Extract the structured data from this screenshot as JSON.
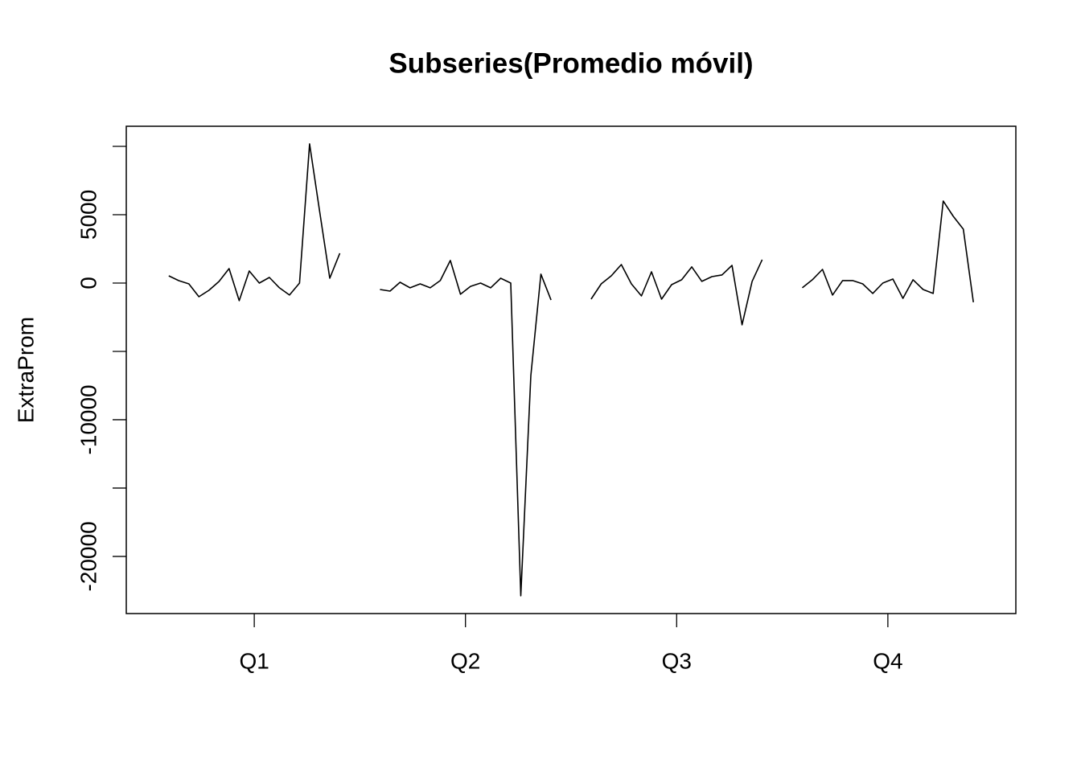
{
  "chart_data": {
    "type": "subseries",
    "title": "Subseries(Promedio móvil)",
    "y_label": "ExtraProm",
    "categories": [
      "Q1",
      "Q2",
      "Q3",
      "Q4"
    ],
    "subseries": [
      [
        530,
        176,
        -59,
        -1000,
        -530,
        118,
        1060,
        -1290,
        880,
        0,
        410,
        -350,
        -880,
        0,
        10180,
        5240,
        350,
        2180
      ],
      [
        -470,
        -590,
        60,
        -350,
        -60,
        -350,
        180,
        1650,
        -820,
        -240,
        0,
        -350,
        350,
        0,
        -22880,
        -6760,
        650,
        -1240
      ],
      [
        -1180,
        -60,
        530,
        1350,
        -60,
        -940,
        820,
        -1180,
        -120,
        240,
        1180,
        120,
        470,
        590,
        1290,
        -3060,
        120,
        1710
      ],
      [
        -350,
        240,
        1000,
        -880,
        180,
        180,
        -60,
        -760,
        0,
        290,
        -1120,
        240,
        -470,
        -760,
        6000,
        4880,
        3940,
        -1410
      ]
    ],
    "color": "#000000",
    "xlim": [
      0.394,
      4.606
    ],
    "ylim": [
      -24180,
      11470
    ],
    "yticks": [
      -20000,
      {
        "value": -15000,
        "label": null
      },
      -10000,
      {
        "value": -5000,
        "label": null
      },
      0,
      5000,
      {
        "value": 10000,
        "label": null
      }
    ]
  }
}
